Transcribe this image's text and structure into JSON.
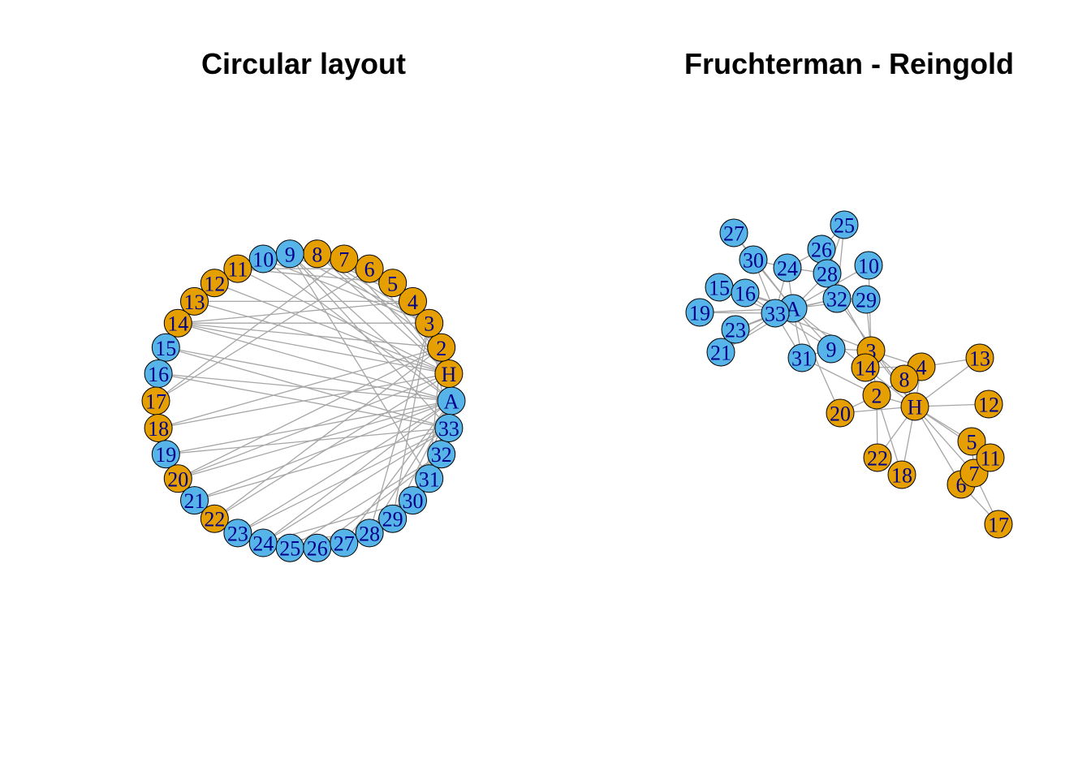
{
  "titles": {
    "left": "Circular layout",
    "right": "Fruchterman - Reingold"
  },
  "colors": {
    "group_h": "#E69F00",
    "group_a": "#56B4E9",
    "edge": "#A6A6A6",
    "node_border": "#000000",
    "label": "#00008B"
  },
  "nodes": [
    {
      "id": "A",
      "group": "a"
    },
    {
      "id": "H",
      "group": "h"
    },
    {
      "id": "2",
      "group": "h"
    },
    {
      "id": "3",
      "group": "h"
    },
    {
      "id": "4",
      "group": "h"
    },
    {
      "id": "5",
      "group": "h"
    },
    {
      "id": "6",
      "group": "h"
    },
    {
      "id": "7",
      "group": "h"
    },
    {
      "id": "8",
      "group": "h"
    },
    {
      "id": "9",
      "group": "a"
    },
    {
      "id": "10",
      "group": "a"
    },
    {
      "id": "11",
      "group": "h"
    },
    {
      "id": "12",
      "group": "h"
    },
    {
      "id": "13",
      "group": "h"
    },
    {
      "id": "14",
      "group": "h"
    },
    {
      "id": "15",
      "group": "a"
    },
    {
      "id": "16",
      "group": "a"
    },
    {
      "id": "17",
      "group": "h"
    },
    {
      "id": "18",
      "group": "h"
    },
    {
      "id": "19",
      "group": "a"
    },
    {
      "id": "20",
      "group": "h"
    },
    {
      "id": "21",
      "group": "a"
    },
    {
      "id": "22",
      "group": "h"
    },
    {
      "id": "23",
      "group": "a"
    },
    {
      "id": "24",
      "group": "a"
    },
    {
      "id": "25",
      "group": "a"
    },
    {
      "id": "26",
      "group": "a"
    },
    {
      "id": "27",
      "group": "a"
    },
    {
      "id": "28",
      "group": "a"
    },
    {
      "id": "29",
      "group": "a"
    },
    {
      "id": "30",
      "group": "a"
    },
    {
      "id": "31",
      "group": "a"
    },
    {
      "id": "32",
      "group": "a"
    },
    {
      "id": "33",
      "group": "a"
    }
  ],
  "edges": [
    [
      "H",
      "2"
    ],
    [
      "H",
      "3"
    ],
    [
      "H",
      "4"
    ],
    [
      "H",
      "5"
    ],
    [
      "H",
      "6"
    ],
    [
      "H",
      "7"
    ],
    [
      "H",
      "8"
    ],
    [
      "H",
      "11"
    ],
    [
      "H",
      "12"
    ],
    [
      "H",
      "13"
    ],
    [
      "H",
      "14"
    ],
    [
      "H",
      "18"
    ],
    [
      "H",
      "20"
    ],
    [
      "H",
      "22"
    ],
    [
      "H",
      "32"
    ],
    [
      "2",
      "3"
    ],
    [
      "2",
      "4"
    ],
    [
      "2",
      "8"
    ],
    [
      "2",
      "14"
    ],
    [
      "2",
      "18"
    ],
    [
      "2",
      "20"
    ],
    [
      "2",
      "22"
    ],
    [
      "2",
      "31"
    ],
    [
      "3",
      "4"
    ],
    [
      "3",
      "8"
    ],
    [
      "3",
      "9"
    ],
    [
      "3",
      "10"
    ],
    [
      "3",
      "14"
    ],
    [
      "3",
      "28"
    ],
    [
      "3",
      "29"
    ],
    [
      "3",
      "33"
    ],
    [
      "4",
      "8"
    ],
    [
      "4",
      "13"
    ],
    [
      "4",
      "14"
    ],
    [
      "5",
      "7"
    ],
    [
      "5",
      "11"
    ],
    [
      "6",
      "7"
    ],
    [
      "6",
      "11"
    ],
    [
      "6",
      "17"
    ],
    [
      "7",
      "17"
    ],
    [
      "9",
      "31"
    ],
    [
      "9",
      "33"
    ],
    [
      "9",
      "A"
    ],
    [
      "10",
      "A"
    ],
    [
      "14",
      "A"
    ],
    [
      "15",
      "33"
    ],
    [
      "15",
      "A"
    ],
    [
      "16",
      "33"
    ],
    [
      "16",
      "A"
    ],
    [
      "19",
      "33"
    ],
    [
      "19",
      "A"
    ],
    [
      "20",
      "A"
    ],
    [
      "21",
      "33"
    ],
    [
      "21",
      "A"
    ],
    [
      "23",
      "33"
    ],
    [
      "23",
      "A"
    ],
    [
      "24",
      "26"
    ],
    [
      "24",
      "28"
    ],
    [
      "24",
      "30"
    ],
    [
      "24",
      "33"
    ],
    [
      "24",
      "A"
    ],
    [
      "25",
      "26"
    ],
    [
      "25",
      "28"
    ],
    [
      "25",
      "32"
    ],
    [
      "26",
      "32"
    ],
    [
      "27",
      "30"
    ],
    [
      "27",
      "A"
    ],
    [
      "28",
      "A"
    ],
    [
      "29",
      "32"
    ],
    [
      "29",
      "A"
    ],
    [
      "30",
      "33"
    ],
    [
      "30",
      "A"
    ],
    [
      "31",
      "33"
    ],
    [
      "31",
      "A"
    ],
    [
      "32",
      "33"
    ],
    [
      "32",
      "A"
    ],
    [
      "33",
      "A"
    ]
  ]
}
